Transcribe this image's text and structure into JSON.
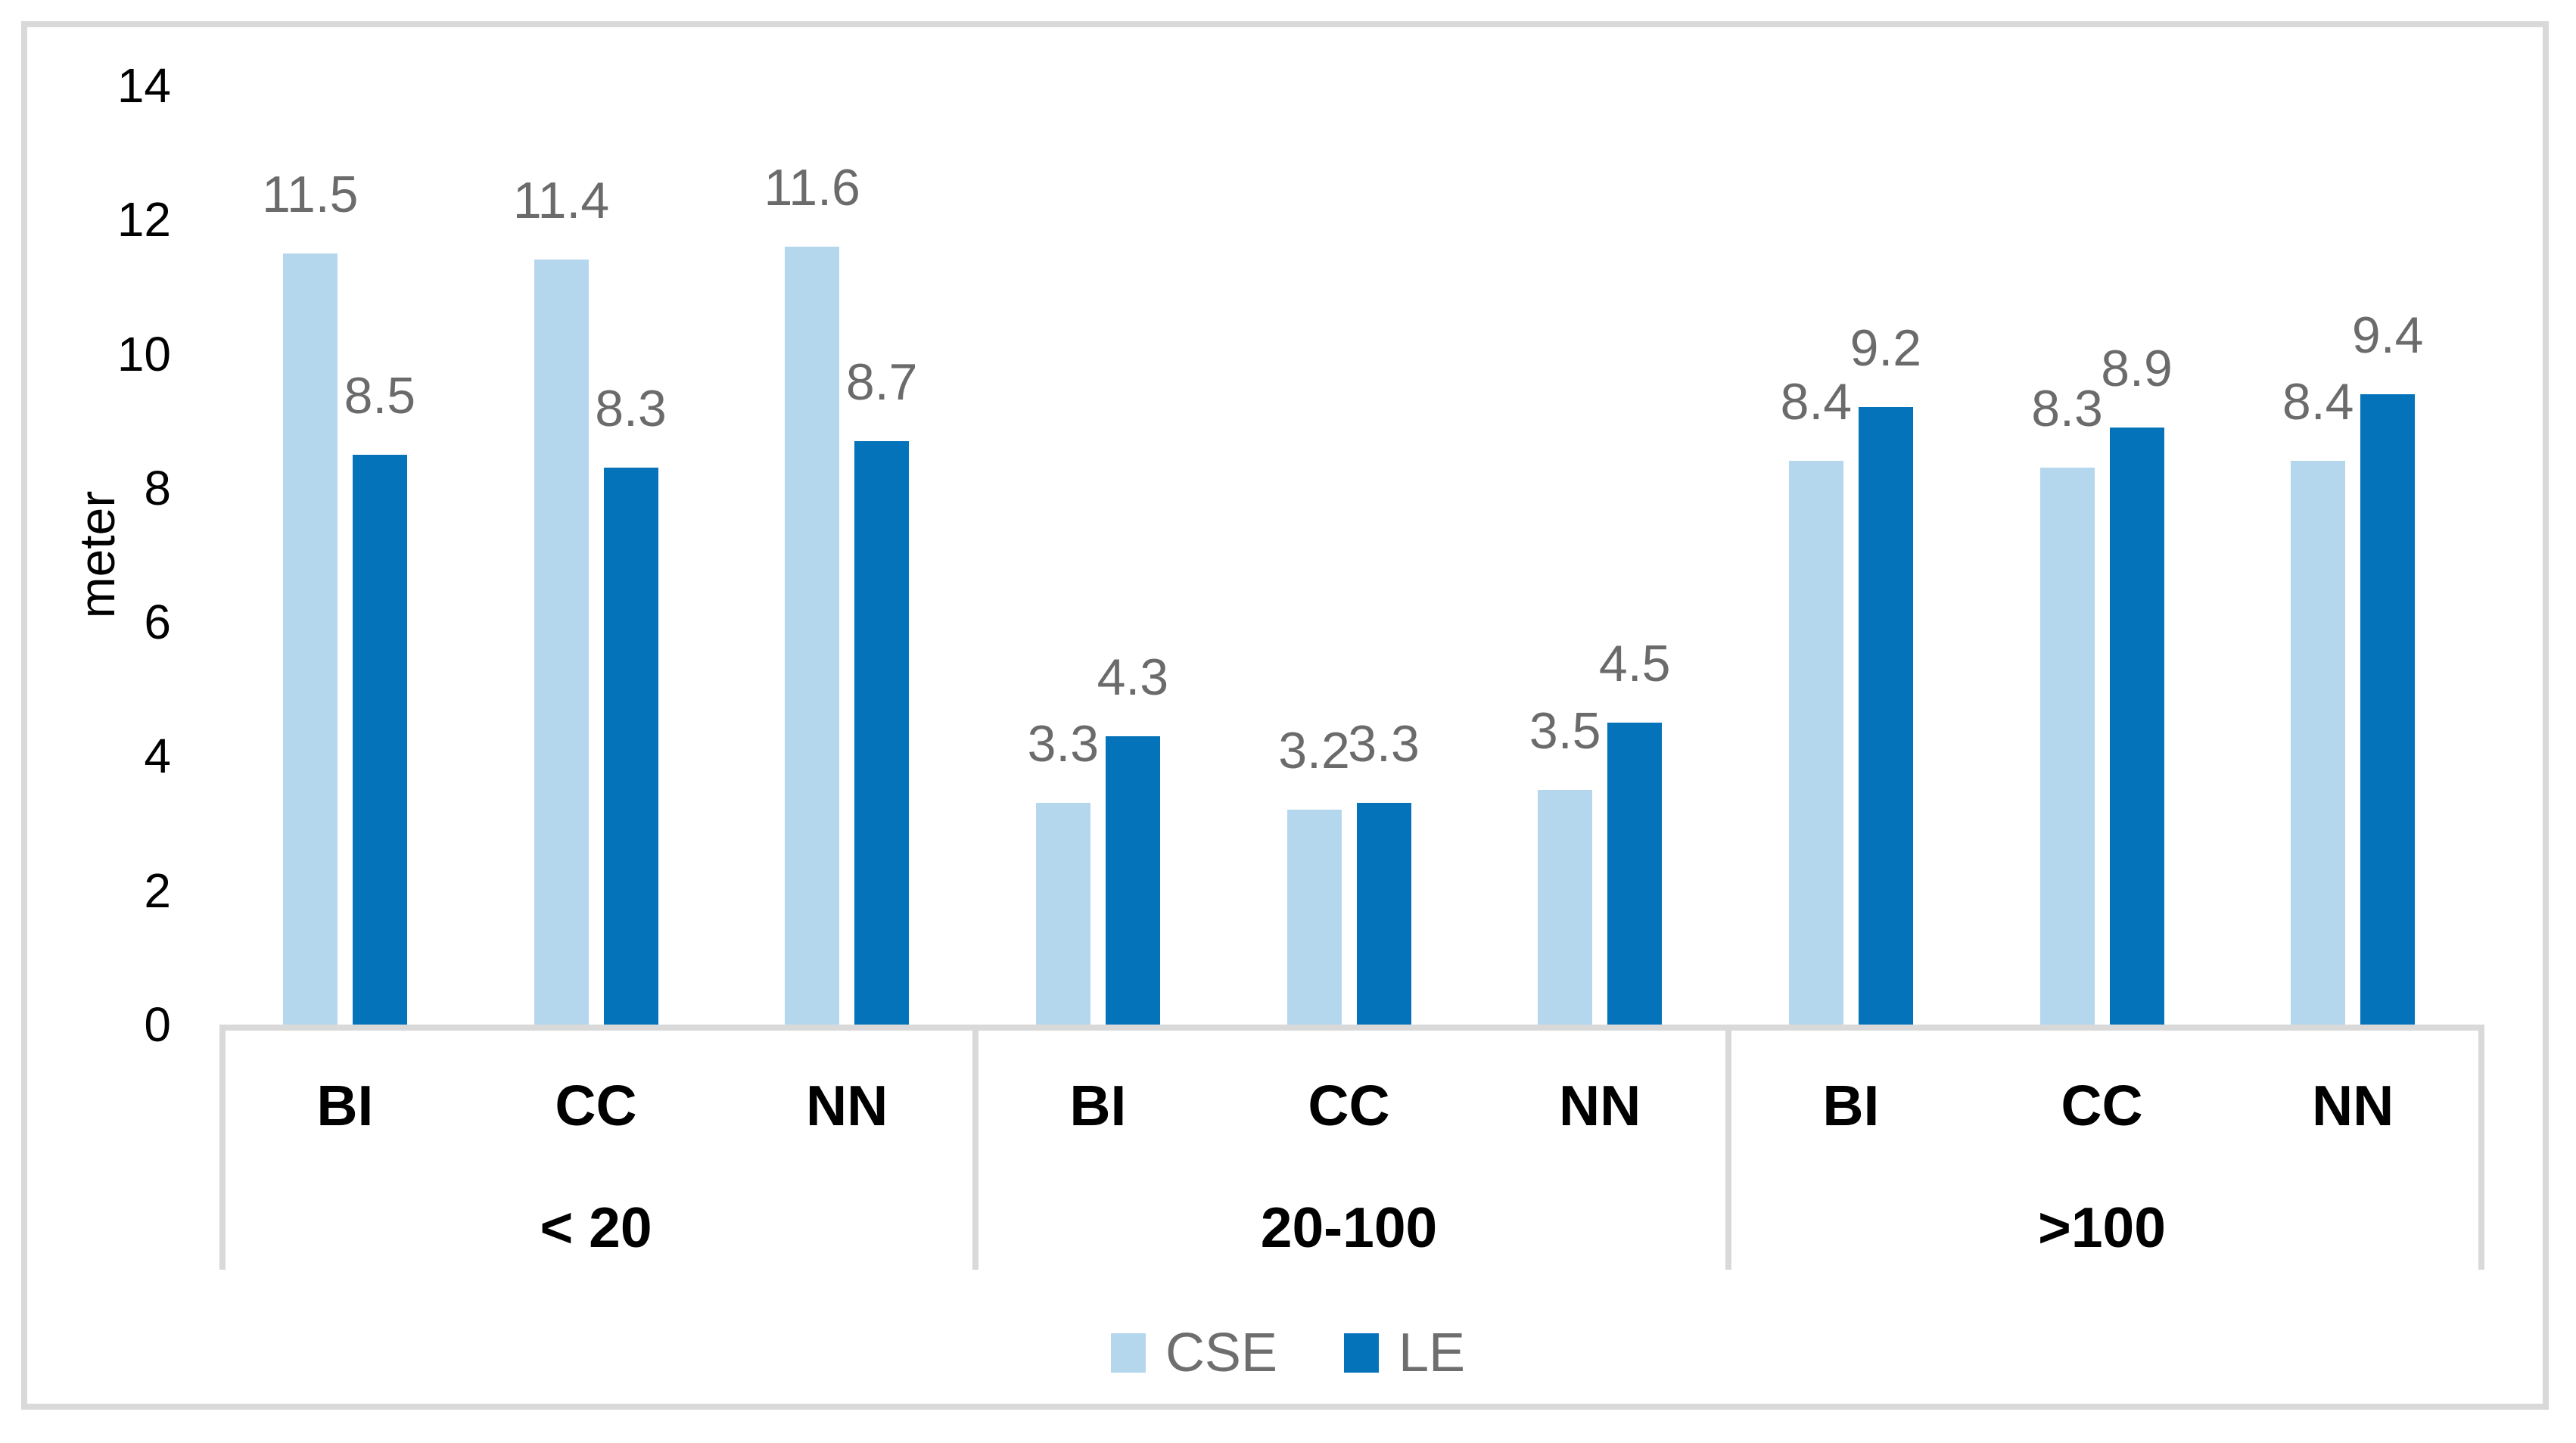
{
  "chart_data": {
    "type": "bar",
    "title": "",
    "xlabel": "",
    "ylabel": "meter",
    "ylim": [
      0,
      14
    ],
    "yticks": [
      0,
      2,
      4,
      6,
      8,
      10,
      12,
      14
    ],
    "grid": false,
    "legend_position": "bottom",
    "data_labels_shown": true,
    "groups": [
      {
        "label": "< 20",
        "categories": [
          "BI",
          "CC",
          "NN"
        ]
      },
      {
        "label": "20-100",
        "categories": [
          "BI",
          "CC",
          "NN"
        ]
      },
      {
        "label": ">100",
        "categories": [
          "BI",
          "CC",
          "NN"
        ]
      }
    ],
    "series": [
      {
        "name": "CSE",
        "color": "#B5D7EE",
        "values": [
          [
            11.5,
            11.4,
            11.6
          ],
          [
            3.3,
            3.2,
            3.5
          ],
          [
            8.4,
            8.3,
            8.4
          ]
        ]
      },
      {
        "name": "LE",
        "color": "#0573BA",
        "values": [
          [
            8.5,
            8.3,
            8.7
          ],
          [
            4.3,
            3.3,
            4.5
          ],
          [
            9.2,
            8.9,
            9.4
          ]
        ]
      }
    ]
  },
  "style": {
    "axis_color": "#D9D9D9",
    "data_label_color": "#6B6B6B",
    "legend_text_color": "#6E6E6E",
    "tick_label_color": "#000000",
    "category_label_color": "#000000"
  }
}
